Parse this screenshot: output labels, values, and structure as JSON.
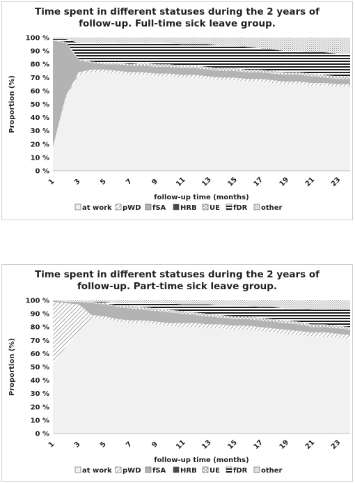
{
  "legend_patterns": {
    "at work": "p-work",
    "pWD": "p-pwd",
    "fSA": "p-fsa",
    "HRB": "p-hrb",
    "UE": "p-ue",
    "fDR": "p-fdr",
    "other": "p-other"
  },
  "chart_data": [
    {
      "type": "area",
      "stacked": true,
      "title_line1": "Time spent in different statuses during the 2 years of",
      "title_line2": "follow-up. Full-time sick leave group.",
      "xlabel": "follow-up time (months)",
      "ylabel": "Proportion (%)",
      "ylim": [
        0,
        100
      ],
      "yticks": [
        "0 %",
        "10 %",
        "20 %",
        "30 %",
        "40 %",
        "50 %",
        "60 %",
        "70 %",
        "80 %",
        "90 %",
        "100 %"
      ],
      "xticks": [
        "1",
        "3",
        "5",
        "7",
        "9",
        "11",
        "13",
        "15",
        "17",
        "19",
        "21",
        "23"
      ],
      "legend_position": "bottom",
      "x": [
        1,
        2,
        3,
        4,
        5,
        6,
        7,
        8,
        9,
        10,
        11,
        12,
        13,
        14,
        15,
        16,
        17,
        18,
        19,
        20,
        21,
        22,
        23,
        24
      ],
      "series": [
        {
          "name": "at work",
          "values": [
            18,
            55,
            72,
            74,
            74,
            73,
            72,
            72,
            71,
            71,
            70,
            70,
            69,
            68,
            68,
            67,
            67,
            66,
            65,
            65,
            64,
            64,
            63,
            63
          ]
        },
        {
          "name": "pWD",
          "values": [
            0,
            1,
            2,
            2,
            2,
            2,
            2,
            2,
            2,
            2,
            2,
            2,
            2,
            2,
            2,
            2,
            2,
            2,
            2,
            2,
            2,
            2,
            2,
            2
          ]
        },
        {
          "name": "fSA",
          "values": [
            80,
            40,
            9,
            5,
            4,
            5,
            5,
            5,
            5,
            5,
            5,
            5,
            5,
            5,
            5,
            5,
            5,
            5,
            5,
            5,
            5,
            4,
            4,
            4
          ]
        },
        {
          "name": "HRB",
          "values": [
            0,
            0,
            0,
            0,
            0,
            0,
            0,
            0,
            0,
            0,
            0,
            0,
            0,
            0,
            0,
            0,
            0,
            0,
            0,
            0,
            0,
            0,
            0,
            0
          ]
        },
        {
          "name": "UE",
          "values": [
            0,
            1,
            1,
            1,
            1,
            1,
            1,
            2,
            2,
            2,
            2,
            2,
            2,
            2,
            2,
            2,
            2,
            2,
            2,
            2,
            2,
            2,
            2,
            2
          ]
        },
        {
          "name": "fDR",
          "values": [
            1,
            2,
            12,
            14,
            15,
            15,
            16,
            15,
            16,
            16,
            16,
            16,
            17,
            17,
            17,
            17,
            16,
            16,
            16,
            16,
            16,
            17,
            17,
            17
          ]
        },
        {
          "name": "other",
          "values": [
            1,
            1,
            4,
            4,
            4,
            4,
            4,
            4,
            4,
            4,
            5,
            5,
            5,
            6,
            6,
            7,
            8,
            9,
            10,
            10,
            11,
            11,
            12,
            12
          ]
        }
      ]
    },
    {
      "type": "area",
      "stacked": true,
      "title_line1": "Time spent in different statuses during the 2 years of",
      "title_line2": "follow-up. Part-time sick leave group.",
      "xlabel": "follow-up time (months)",
      "ylabel": "Proportion (%)",
      "ylim": [
        0,
        100
      ],
      "yticks": [
        "0 %",
        "10 %",
        "20 %",
        "30 %",
        "40 %",
        "50 %",
        "60 %",
        "70 %",
        "80 %",
        "90 %",
        "100 %"
      ],
      "xticks": [
        "1",
        "3",
        "5",
        "7",
        "9",
        "11",
        "13",
        "15",
        "17",
        "19",
        "21",
        "23"
      ],
      "legend_position": "bottom",
      "x": [
        1,
        2,
        3,
        4,
        5,
        6,
        7,
        8,
        9,
        10,
        11,
        12,
        13,
        14,
        15,
        16,
        17,
        18,
        19,
        20,
        21,
        22,
        23,
        24
      ],
      "series": [
        {
          "name": "at work",
          "values": [
            52,
            65,
            77,
            87,
            86,
            84,
            83,
            83,
            82,
            81,
            80,
            80,
            79,
            79,
            78,
            78,
            77,
            76,
            75,
            74,
            73,
            73,
            72,
            71
          ]
        },
        {
          "name": "pWD",
          "values": [
            47,
            33,
            20,
            2,
            2,
            2,
            2,
            2,
            2,
            2,
            3,
            3,
            3,
            3,
            3,
            3,
            3,
            3,
            3,
            3,
            3,
            3,
            3,
            3
          ]
        },
        {
          "name": "fSA",
          "values": [
            1,
            1,
            2,
            9,
            9,
            9,
            9,
            8,
            8,
            8,
            7,
            6,
            6,
            5,
            5,
            5,
            5,
            5,
            5,
            5,
            4,
            4,
            4,
            4
          ]
        },
        {
          "name": "HRB",
          "values": [
            0,
            0,
            0,
            0,
            0,
            0,
            0,
            0,
            0,
            0,
            0,
            0,
            0,
            0,
            0,
            0,
            0,
            0,
            0,
            0,
            0,
            0,
            0,
            0
          ]
        },
        {
          "name": "UE",
          "values": [
            0,
            0,
            0,
            1,
            1,
            1,
            2,
            2,
            2,
            2,
            2,
            2,
            2,
            2,
            2,
            2,
            2,
            2,
            2,
            2,
            2,
            2,
            2,
            2
          ]
        },
        {
          "name": "fDR",
          "values": [
            0,
            0,
            0,
            0,
            1,
            2,
            2,
            3,
            4,
            5,
            5,
            6,
            7,
            7,
            8,
            8,
            8,
            9,
            9,
            10,
            11,
            11,
            12,
            13
          ]
        },
        {
          "name": "other",
          "values": [
            0,
            1,
            1,
            1,
            1,
            2,
            2,
            2,
            2,
            2,
            3,
            3,
            3,
            4,
            4,
            4,
            5,
            5,
            6,
            6,
            7,
            7,
            7,
            7
          ]
        }
      ]
    }
  ]
}
